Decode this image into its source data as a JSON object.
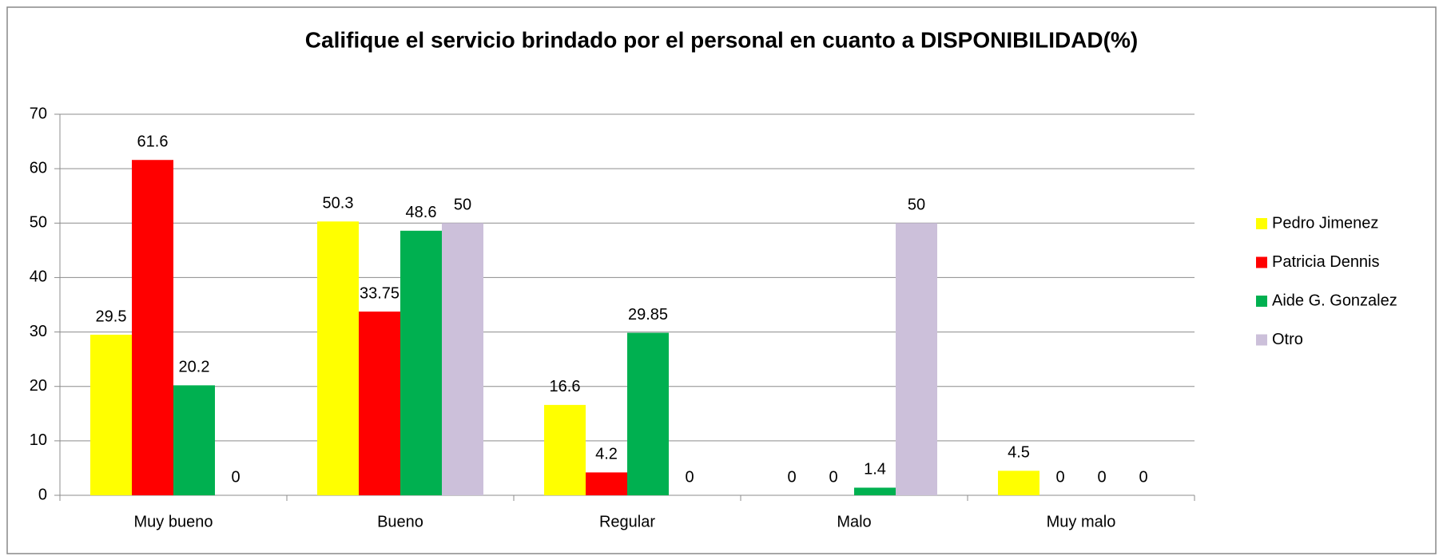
{
  "chart_data": {
    "type": "bar",
    "title": "Califique el servicio brindado por el personal en cuanto a DISPONIBILIDAD(%)",
    "categories": [
      "Muy bueno",
      "Bueno",
      "Regular",
      "Malo",
      "Muy malo"
    ],
    "series": [
      {
        "name": "Pedro Jimenez",
        "color": "#ffff00",
        "values": [
          29.5,
          50.3,
          16.6,
          0,
          4.5
        ]
      },
      {
        "name": "Patricia Dennis",
        "color": "#ff0000",
        "values": [
          61.6,
          33.75,
          4.2,
          0,
          0
        ]
      },
      {
        "name": "Aide G. Gonzalez",
        "color": "#00b050",
        "values": [
          20.2,
          48.6,
          29.85,
          1.4,
          0
        ]
      },
      {
        "name": "Otro",
        "color": "#ccc0da",
        "values": [
          0,
          50,
          0,
          50,
          0
        ]
      }
    ],
    "ylim": [
      0,
      70
    ],
    "yticks": [
      0,
      10,
      20,
      30,
      40,
      50,
      60,
      70
    ],
    "grid": true,
    "legend": "right"
  }
}
